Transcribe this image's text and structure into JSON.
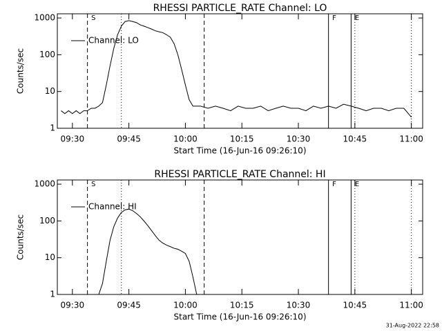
{
  "chart_data": [
    {
      "type": "line",
      "title": "RHESSI PARTICLE_RATE Channel: LO",
      "xlabel": "Start Time (16-Jun-16 09:26:10)",
      "ylabel": "Counts/sec",
      "x": [
        "09:27",
        "09:28",
        "09:29",
        "09:30",
        "09:31",
        "09:32",
        "09:33",
        "09:34",
        "09:35",
        "09:36",
        "09:37",
        "09:38",
        "09:39",
        "09:40",
        "09:41",
        "09:42",
        "09:43",
        "09:44",
        "09:45",
        "09:46",
        "09:47",
        "09:48",
        "09:49",
        "09:50",
        "09:51",
        "09:52",
        "09:53",
        "09:54",
        "09:55",
        "09:56",
        "09:57",
        "09:58",
        "09:59",
        "10:00",
        "10:01",
        "10:02",
        "10:04",
        "10:06",
        "10:08",
        "10:10",
        "10:12",
        "10:14",
        "10:16",
        "10:18",
        "10:20",
        "10:22",
        "10:24",
        "10:26",
        "10:28",
        "10:30",
        "10:32",
        "10:34",
        "10:36",
        "10:38",
        "10:40",
        "10:42",
        "10:44",
        "10:46",
        "10:48",
        "10:50",
        "10:52",
        "10:54",
        "10:56",
        "10:58",
        "11:00"
      ],
      "series": [
        {
          "name": "Channel: LO",
          "color": "#000000",
          "values": [
            3,
            2.5,
            3,
            2.5,
            3,
            2.5,
            3,
            3,
            3.5,
            3.5,
            4,
            5,
            15,
            50,
            150,
            350,
            600,
            800,
            850,
            800,
            750,
            650,
            600,
            550,
            500,
            450,
            420,
            400,
            350,
            300,
            200,
            100,
            40,
            15,
            6,
            4,
            4,
            3.5,
            4,
            3.5,
            3,
            4,
            3.5,
            3.5,
            4,
            3,
            3.5,
            4,
            3.5,
            3.5,
            3,
            4,
            3.5,
            4,
            3.5,
            4.5,
            4,
            3.5,
            3,
            3.5,
            3.5,
            3,
            3.5,
            3.5,
            2
          ]
        }
      ],
      "xlim": [
        "09:26",
        "11:03"
      ],
      "xticks": [
        "09:30",
        "09:45",
        "10:00",
        "10:15",
        "10:30",
        "10:45",
        "11:00"
      ],
      "ylim": [
        1,
        1300
      ],
      "yticks": [
        1,
        10,
        100,
        1000
      ],
      "log_y": true,
      "legend": "upper left",
      "vlines": [
        {
          "x": "09:34",
          "style": "dashed"
        },
        {
          "x": "10:05",
          "style": "dashed"
        },
        {
          "x": "09:43",
          "style": "dotted"
        },
        {
          "x": "10:45",
          "style": "dotted"
        },
        {
          "x": "11:00",
          "style": "dotted"
        },
        {
          "x": "10:38",
          "style": "solid"
        },
        {
          "x": "10:44",
          "style": "solid"
        }
      ],
      "annotations": [
        {
          "text": "S",
          "x": "09:35"
        },
        {
          "text": "F",
          "x": "10:39"
        },
        {
          "text": "E",
          "x": "10:45"
        }
      ]
    },
    {
      "type": "line",
      "title": "RHESSI PARTICLE_RATE Channel: HI",
      "xlabel": "Start Time (16-Jun-16 09:26:10)",
      "ylabel": "Counts/sec",
      "x": [
        "09:37",
        "09:38",
        "09:39",
        "09:40",
        "09:41",
        "09:42",
        "09:43",
        "09:44",
        "09:45",
        "09:46",
        "09:47",
        "09:48",
        "09:49",
        "09:50",
        "09:51",
        "09:52",
        "09:53",
        "09:54",
        "09:55",
        "09:56",
        "09:57",
        "09:58",
        "09:59",
        "10:00",
        "10:01",
        "10:02",
        "10:03"
      ],
      "series": [
        {
          "name": "Channel: HI",
          "color": "#000000",
          "values": [
            1,
            2,
            8,
            30,
            70,
            120,
            170,
            200,
            210,
            190,
            160,
            130,
            100,
            75,
            55,
            40,
            30,
            25,
            22,
            20,
            18,
            17,
            15,
            13,
            8,
            3,
            1
          ]
        }
      ],
      "xlim": [
        "09:26",
        "11:03"
      ],
      "xticks": [
        "09:30",
        "09:45",
        "10:00",
        "10:15",
        "10:30",
        "10:45",
        "11:00"
      ],
      "ylim": [
        1,
        1300
      ],
      "yticks": [
        1,
        10,
        100,
        1000
      ],
      "log_y": true,
      "legend": "upper left",
      "vlines": [
        {
          "x": "09:34",
          "style": "dashed"
        },
        {
          "x": "10:05",
          "style": "dashed"
        },
        {
          "x": "09:43",
          "style": "dotted"
        },
        {
          "x": "10:45",
          "style": "dotted"
        },
        {
          "x": "11:00",
          "style": "dotted"
        },
        {
          "x": "10:38",
          "style": "solid"
        },
        {
          "x": "10:44",
          "style": "solid"
        }
      ],
      "annotations": [
        {
          "text": "S",
          "x": "09:35"
        },
        {
          "text": "F",
          "x": "10:39"
        },
        {
          "text": "E",
          "x": "10:45"
        }
      ]
    }
  ],
  "footer": "31-Aug-2022 22:58"
}
